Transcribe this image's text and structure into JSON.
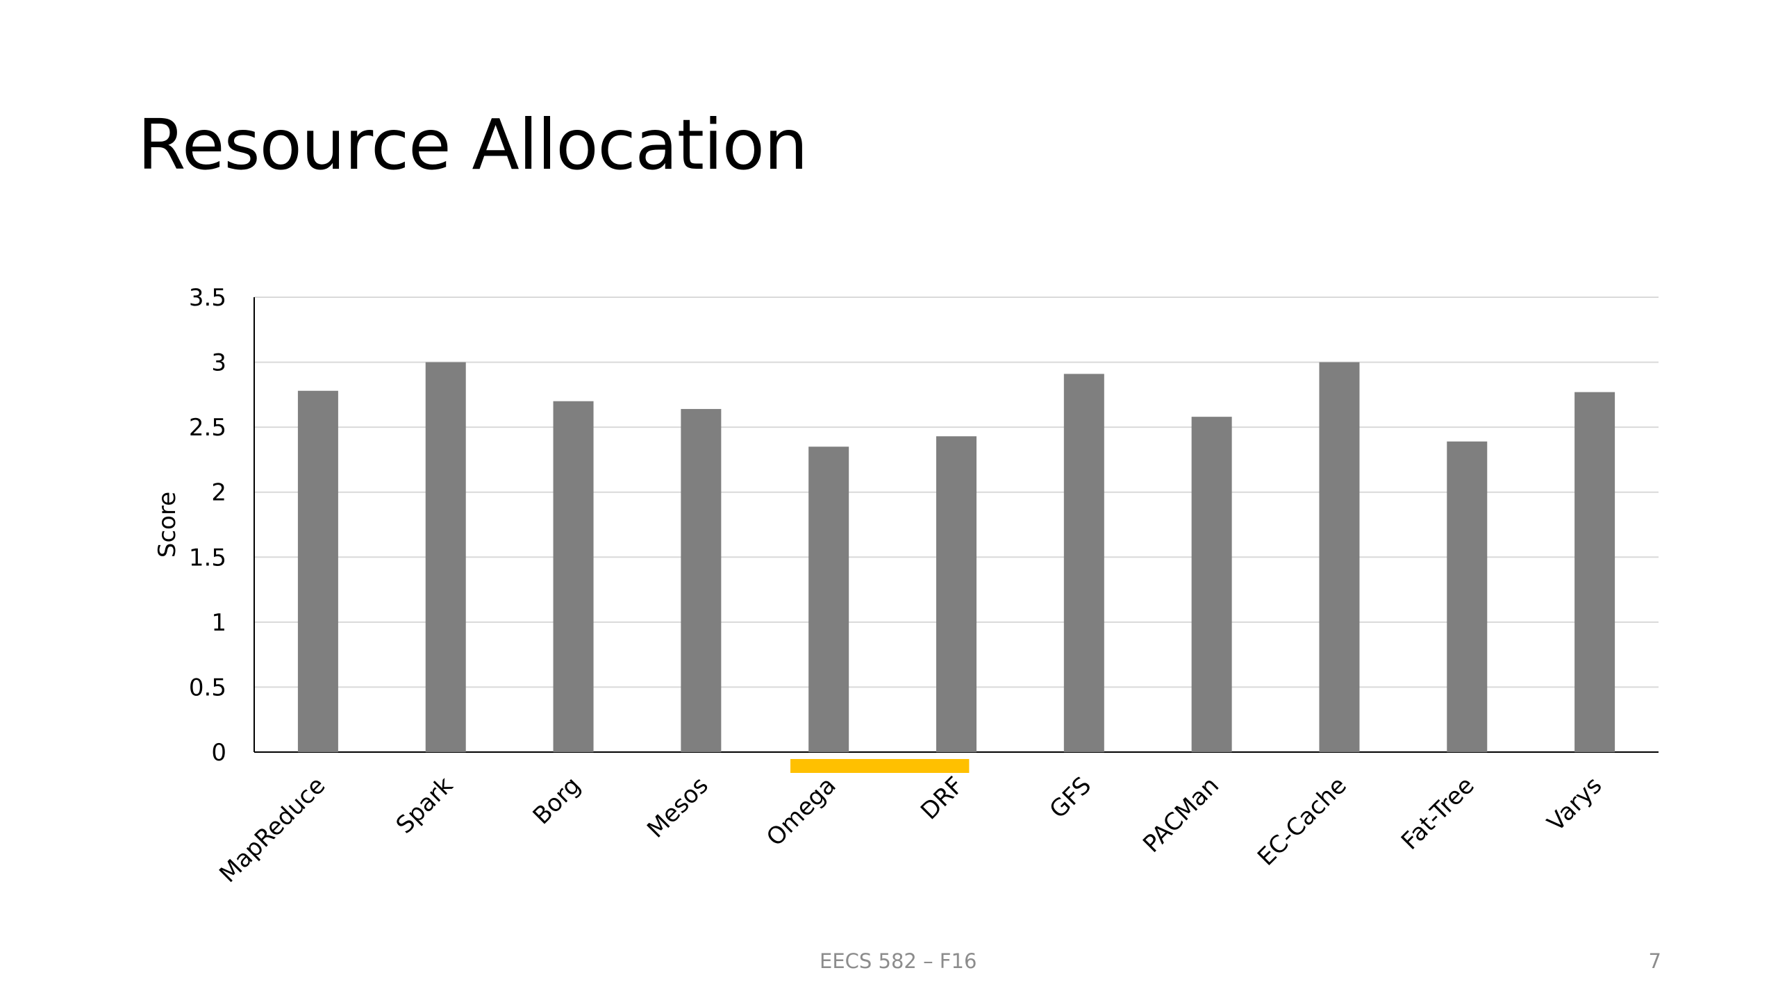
{
  "slide": {
    "title": "Resource Allocation",
    "footer": "EECS 582 – F16",
    "page_number": "7"
  },
  "colors": {
    "bar": "#7f7f7f",
    "highlight": "#ffc000",
    "grid": "#d9d9d9",
    "axis": "#000000",
    "text": "#000000",
    "footer": "#8c8c8c"
  },
  "chart_data": {
    "type": "bar",
    "title": "",
    "xlabel": "",
    "ylabel": "Score",
    "ylim": [
      0,
      3.5
    ],
    "yticks": [
      "0",
      "0.5",
      "1",
      "1.5",
      "2",
      "2.5",
      "3",
      "3.5"
    ],
    "grid": true,
    "categories": [
      "MapReduce",
      "Spark",
      "Borg",
      "Mesos",
      "Omega",
      "DRF",
      "GFS",
      "PACMan",
      "EC-Cache",
      "Fat-Tree",
      "Varys"
    ],
    "values": [
      2.78,
      3.0,
      2.7,
      2.64,
      2.35,
      2.43,
      2.91,
      2.58,
      3.0,
      2.39,
      2.77
    ],
    "highlighted_categories": [
      "Omega",
      "DRF"
    ]
  }
}
